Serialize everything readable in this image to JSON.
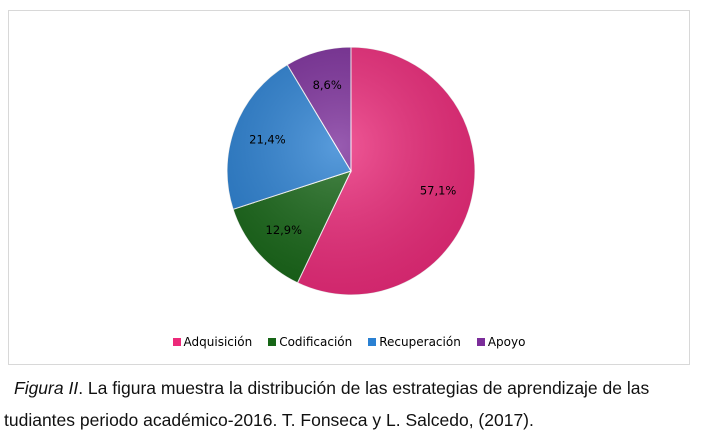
{
  "chart_data": {
    "type": "pie",
    "categories": [
      "Adquisición",
      "Codificación",
      "Recuperación",
      "Apoyo"
    ],
    "values": [
      57.1,
      12.9,
      21.4,
      8.6
    ],
    "labels": [
      "57,1%",
      "12,9%",
      "21,4%",
      "8,6%"
    ],
    "colors": [
      "#ec2a7a",
      "#176617",
      "#2a80d2",
      "#7b2d9a"
    ],
    "legend_position": "bottom",
    "start_angle_deg": 0,
    "direction": "clockwise"
  },
  "caption": {
    "figure_label": "Figura II",
    "text_line1": ". La figura muestra la distribución de las estrategias de aprendizaje de las",
    "text_line2": "tudiantes periodo académico-2016. T. Fonseca y L. Salcedo, (2017)."
  }
}
